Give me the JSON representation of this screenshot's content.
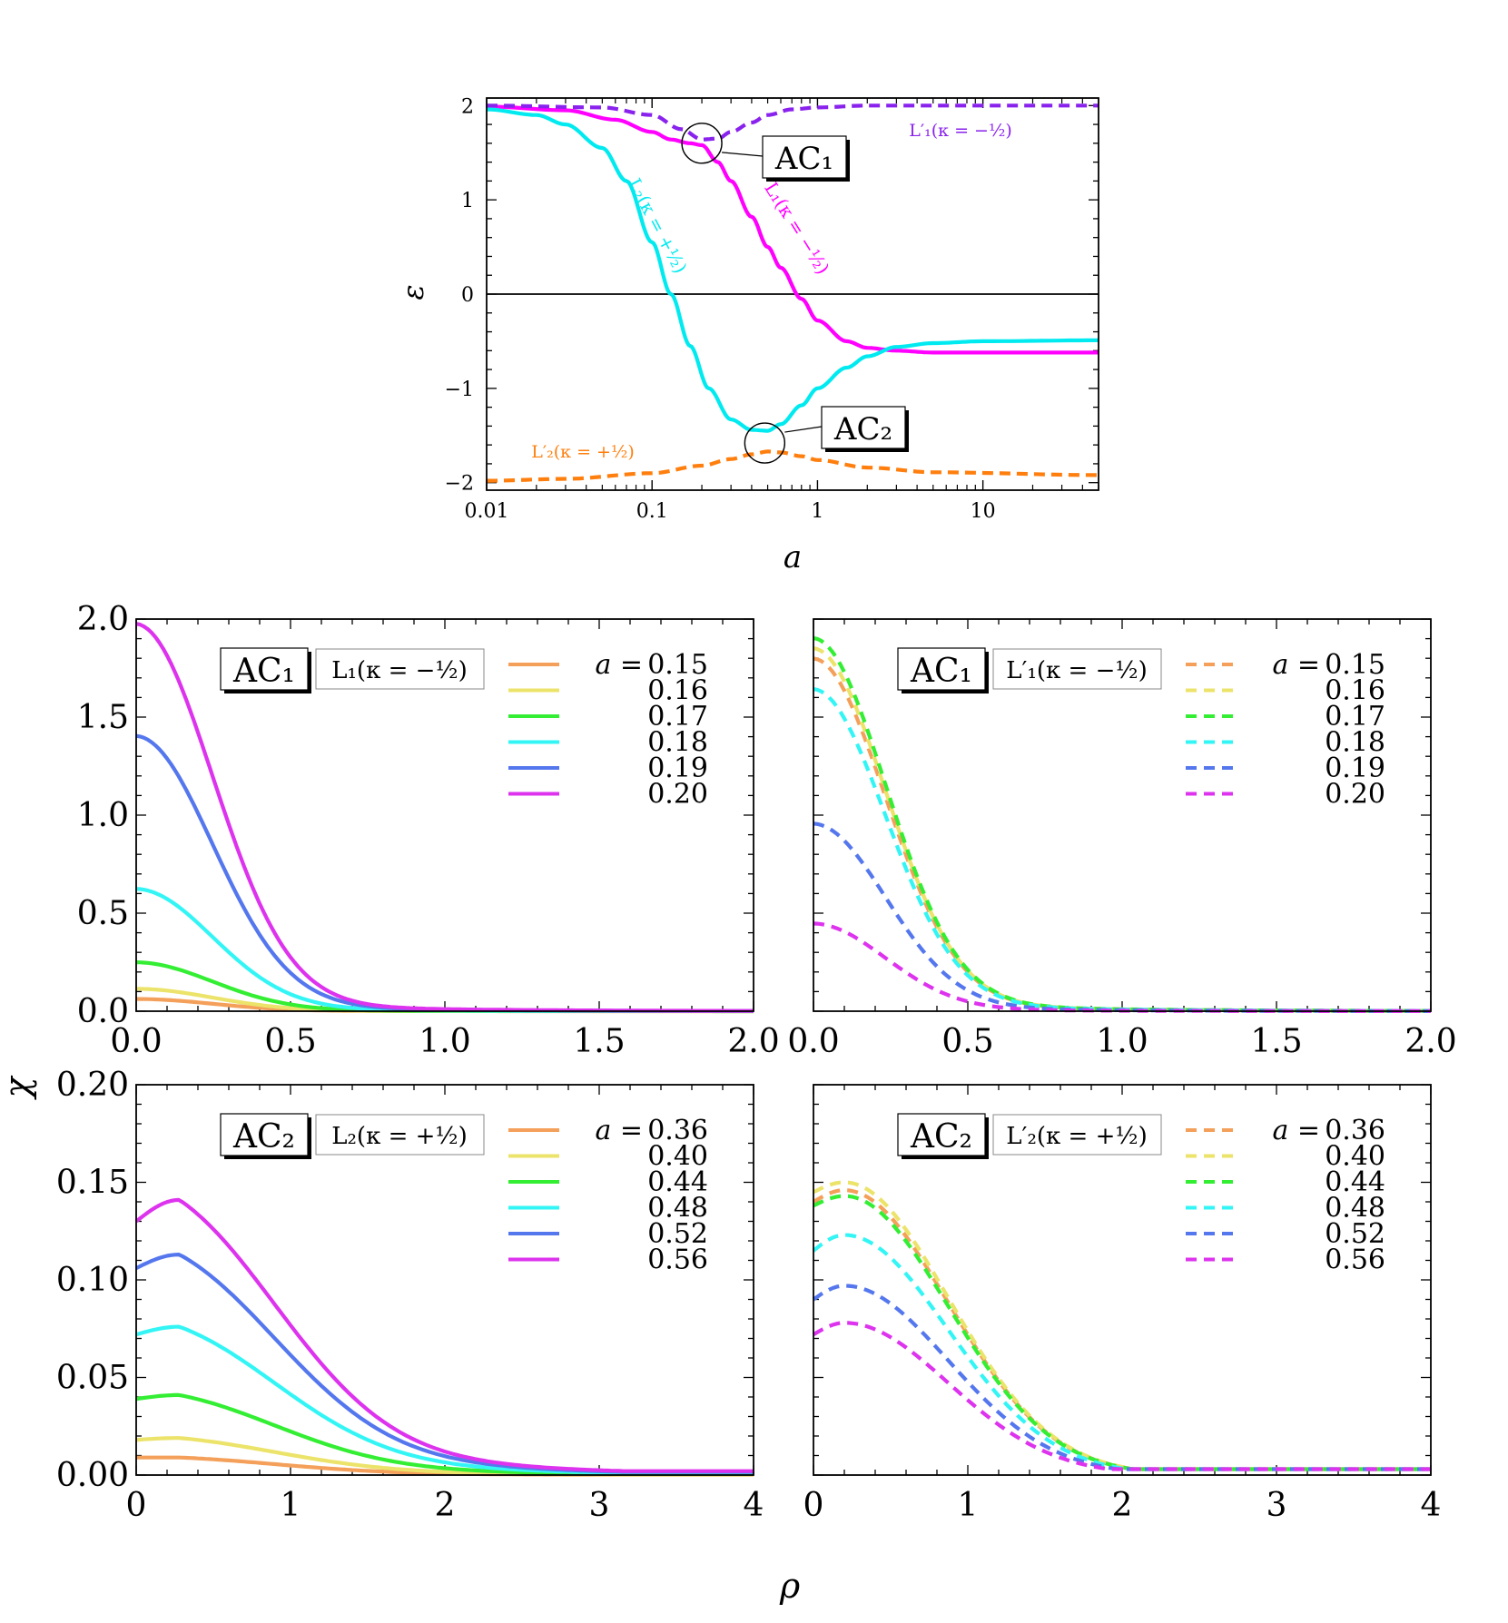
{
  "chart_data": [
    {
      "id": "top",
      "type": "line",
      "xscale": "log",
      "xlabel": "a",
      "ylabel": "ε",
      "xlim": [
        0.01,
        50
      ],
      "ylim": [
        -2.08,
        2.08
      ],
      "xticks": [
        {
          "v": 0.01,
          "label": "0.01"
        },
        {
          "v": 0.1,
          "label": "0.1"
        },
        {
          "v": 1,
          "label": "1"
        },
        {
          "v": 10,
          "label": "10"
        }
      ],
      "yticks": [
        {
          "v": 2,
          "label": "2"
        },
        {
          "v": 1,
          "label": "1"
        },
        {
          "v": 0,
          "label": "0"
        },
        {
          "v": -1,
          "label": "−1"
        },
        {
          "v": -2,
          "label": "−2"
        }
      ],
      "series": [
        {
          "name": "L1(κ = −1/2)",
          "color": "#ff00ff",
          "dash": false,
          "x": [
            0.01,
            0.03,
            0.06,
            0.1,
            0.13,
            0.17,
            0.2,
            0.25,
            0.3,
            0.4,
            0.5,
            0.6,
            0.8,
            1,
            1.5,
            2,
            3,
            5,
            10,
            50
          ],
          "y": [
            1.99,
            1.95,
            1.85,
            1.72,
            1.64,
            1.6,
            1.58,
            1.4,
            1.2,
            0.82,
            0.5,
            0.28,
            -0.05,
            -0.28,
            -0.5,
            -0.57,
            -0.6,
            -0.62,
            -0.62,
            -0.62
          ]
        },
        {
          "name": "L2(κ = +1/2)",
          "color": "#00eaf0",
          "dash": false,
          "x": [
            0.01,
            0.02,
            0.03,
            0.05,
            0.07,
            0.1,
            0.13,
            0.17,
            0.22,
            0.3,
            0.4,
            0.5,
            0.6,
            0.8,
            1,
            1.5,
            2,
            3,
            5,
            10,
            50
          ],
          "y": [
            1.96,
            1.9,
            1.8,
            1.55,
            1.2,
            0.55,
            0.0,
            -0.55,
            -1.0,
            -1.33,
            -1.44,
            -1.45,
            -1.38,
            -1.18,
            -1.0,
            -0.78,
            -0.66,
            -0.56,
            -0.52,
            -0.5,
            -0.49
          ]
        },
        {
          "name": "L'1(κ = −1/2)",
          "color": "#8a22ee",
          "dash": true,
          "x": [
            0.01,
            0.05,
            0.1,
            0.15,
            0.2,
            0.25,
            0.3,
            0.4,
            0.5,
            0.7,
            1,
            2,
            5,
            50
          ],
          "y": [
            2.0,
            1.98,
            1.9,
            1.75,
            1.64,
            1.65,
            1.72,
            1.82,
            1.9,
            1.96,
            1.98,
            2.0,
            2.0,
            2.0
          ]
        },
        {
          "name": "L'2(κ = +1/2)",
          "color": "#ff7f0e",
          "dash": true,
          "x": [
            0.01,
            0.03,
            0.1,
            0.2,
            0.3,
            0.4,
            0.5,
            0.6,
            0.8,
            1,
            2,
            5,
            50
          ],
          "y": [
            -1.98,
            -1.96,
            -1.9,
            -1.82,
            -1.75,
            -1.7,
            -1.67,
            -1.68,
            -1.72,
            -1.76,
            -1.84,
            -1.89,
            -1.92
          ]
        }
      ],
      "labels": [
        {
          "text": "L₂(κ = +½)",
          "color": "#00eaf0"
        },
        {
          "text": "L₁(κ = −½)",
          "color": "#ff00ff"
        },
        {
          "text": "L′₁(κ = −½)",
          "color": "#8a22ee"
        },
        {
          "text": "L′₂(κ = +½)",
          "color": "#ff7f0e"
        }
      ],
      "annotations": [
        {
          "text": "AC₁",
          "a": 0.2,
          "eps": 1.6
        },
        {
          "text": "AC₂",
          "a": 0.48,
          "eps": -1.58
        }
      ]
    },
    {
      "id": "p1",
      "type": "line",
      "xlim": [
        0,
        2
      ],
      "ylim": [
        0,
        2
      ],
      "xticks": [
        {
          "v": 0,
          "label": "0.0"
        },
        {
          "v": 0.5,
          "label": "0.5"
        },
        {
          "v": 1,
          "label": "1.0"
        },
        {
          "v": 1.5,
          "label": "1.5"
        },
        {
          "v": 2,
          "label": "2.0"
        }
      ],
      "yticks": [
        {
          "v": 0,
          "label": "0.0"
        },
        {
          "v": 0.5,
          "label": "0.5"
        },
        {
          "v": 1,
          "label": "1.0"
        },
        {
          "v": 1.5,
          "label": "1.5"
        },
        {
          "v": 2,
          "label": "2.0"
        }
      ],
      "tag": "AC₁",
      "state": "L₁(κ = −½)",
      "legend_title": "a = ",
      "model": "gauss",
      "x0": 0,
      "w": 0.35,
      "dash": false,
      "series": [
        {
          "a": "0.15",
          "peak": 0.06,
          "color": "#f4a05a"
        },
        {
          "a": "0.16",
          "peak": 0.11,
          "color": "#ece36a"
        },
        {
          "a": "0.17",
          "peak": 0.24,
          "color": "#33ee33"
        },
        {
          "a": "0.18",
          "peak": 0.6,
          "color": "#33f5f5"
        },
        {
          "a": "0.19",
          "peak": 1.35,
          "color": "#5577ee"
        },
        {
          "a": "0.20",
          "peak": 1.9,
          "color": "#dd33ee"
        }
      ]
    },
    {
      "id": "p2",
      "type": "line",
      "xlim": [
        0,
        2
      ],
      "ylim": [
        0,
        2
      ],
      "xticks": [
        {
          "v": 0,
          "label": "0.0"
        },
        {
          "v": 0.5,
          "label": "0.5"
        },
        {
          "v": 1,
          "label": "1.0"
        },
        {
          "v": 1.5,
          "label": "1.5"
        },
        {
          "v": 2,
          "label": "2.0"
        }
      ],
      "yticks": [],
      "tag": "AC₁",
      "state": "L′₁(κ = −½)",
      "legend_title": "a = ",
      "model": "gauss",
      "x0": 0,
      "w": 0.33,
      "dash": true,
      "series": [
        {
          "a": "0.15",
          "peak": 1.73,
          "color": "#f4a05a"
        },
        {
          "a": "0.16",
          "peak": 1.78,
          "color": "#ece36a"
        },
        {
          "a": "0.17",
          "peak": 1.83,
          "color": "#33ee33"
        },
        {
          "a": "0.18",
          "peak": 1.58,
          "color": "#33f5f5"
        },
        {
          "a": "0.19",
          "peak": 0.92,
          "color": "#5577ee"
        },
        {
          "a": "0.20",
          "peak": 0.43,
          "color": "#dd33ee"
        }
      ]
    },
    {
      "id": "p3",
      "type": "line",
      "xlim": [
        0,
        4
      ],
      "ylim": [
        0,
        0.2
      ],
      "xticks": [
        {
          "v": 0,
          "label": "0"
        },
        {
          "v": 1,
          "label": "1"
        },
        {
          "v": 2,
          "label": "2"
        },
        {
          "v": 3,
          "label": "3"
        },
        {
          "v": 4,
          "label": "4"
        }
      ],
      "yticks": [
        {
          "v": 0,
          "label": "0.00"
        },
        {
          "v": 0.05,
          "label": "0.05"
        },
        {
          "v": 0.1,
          "label": "0.10"
        },
        {
          "v": 0.15,
          "label": "0.15"
        },
        {
          "v": 0.2,
          "label": "0.20"
        }
      ],
      "tag": "AC₂",
      "state": "L₂(κ = +½)",
      "legend_title": "a = ",
      "model": "hump",
      "x0": 0.28,
      "w": 1.0,
      "dash": false,
      "series": [
        {
          "a": "0.36",
          "peak": 0.009,
          "base": 0.009,
          "color": "#f4a05a"
        },
        {
          "a": "0.40",
          "peak": 0.019,
          "base": 0.018,
          "color": "#ece36a"
        },
        {
          "a": "0.44",
          "peak": 0.041,
          "base": 0.039,
          "color": "#33ee33"
        },
        {
          "a": "0.48",
          "peak": 0.076,
          "base": 0.072,
          "color": "#33f5f5"
        },
        {
          "a": "0.52",
          "peak": 0.113,
          "base": 0.106,
          "color": "#5577ee"
        },
        {
          "a": "0.56",
          "peak": 0.141,
          "base": 0.13,
          "color": "#dd33ee"
        }
      ]
    },
    {
      "id": "p4",
      "type": "line",
      "xlim": [
        0,
        4
      ],
      "ylim": [
        0,
        0.2
      ],
      "xticks": [
        {
          "v": 0,
          "label": "0"
        },
        {
          "v": 1,
          "label": "1"
        },
        {
          "v": 2,
          "label": "2"
        },
        {
          "v": 3,
          "label": "3"
        },
        {
          "v": 4,
          "label": "4"
        }
      ],
      "yticks": [],
      "tag": "AC₂",
      "state": "L′₂(κ = +½)",
      "legend_title": "a = ",
      "model": "dhump",
      "x0": 0.2,
      "w": 0.95,
      "dash": true,
      "series": [
        {
          "a": "0.36",
          "peak": 0.146,
          "base": 0.14,
          "color": "#f4a05a"
        },
        {
          "a": "0.40",
          "peak": 0.15,
          "base": 0.145,
          "color": "#ece36a"
        },
        {
          "a": "0.44",
          "peak": 0.143,
          "base": 0.138,
          "color": "#33ee33"
        },
        {
          "a": "0.48",
          "peak": 0.123,
          "base": 0.115,
          "color": "#33f5f5"
        },
        {
          "a": "0.52",
          "peak": 0.097,
          "base": 0.09,
          "color": "#5577ee"
        },
        {
          "a": "0.56",
          "peak": 0.078,
          "base": 0.072,
          "color": "#dd33ee"
        }
      ]
    }
  ],
  "shared_labels": {
    "chi": "χ",
    "rho": "ρ"
  }
}
